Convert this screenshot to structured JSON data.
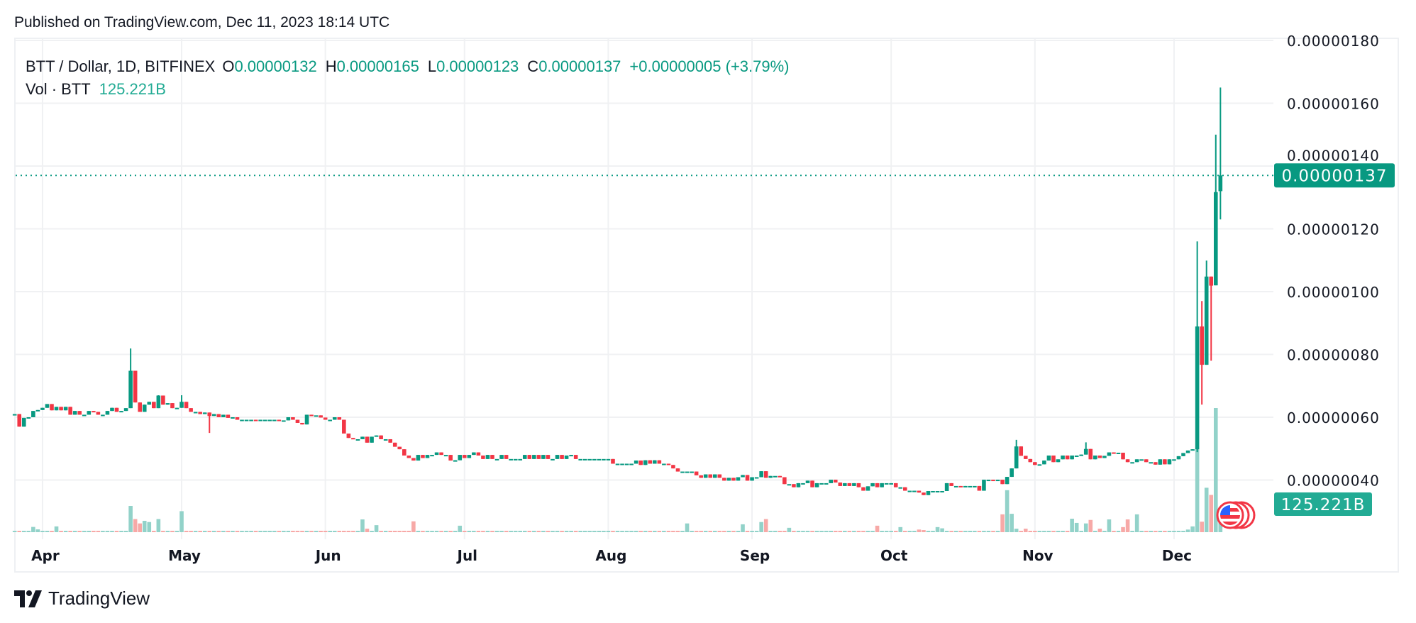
{
  "published": "Published on TradingView.com, Dec 11, 2023 18:14 UTC",
  "legend": {
    "symbol": "BTT / Dollar, 1D, BITFINEX",
    "o_label": "O",
    "o_value": "0.00000132",
    "h_label": "H",
    "h_value": "0.00000165",
    "l_label": "L",
    "l_value": "0.00000123",
    "c_label": "C",
    "c_value": "0.00000137",
    "change": "+0.00000005 (+3.79%)",
    "vol_label": "Vol · BTT",
    "vol_value": "125.221B"
  },
  "footer": {
    "brand": "TradingView"
  },
  "chart_data": {
    "type": "candlestick",
    "interval": "1D",
    "colors": {
      "up": "#089981",
      "down": "#f23645",
      "vol_up": "#92d2c9",
      "vol_down": "#f7a9a7",
      "volume_label_bg": "#22ab94",
      "price_label_bg": "#089981"
    },
    "price_axis": {
      "ticks": [
        "0.00000040",
        "0.00000060",
        "0.00000080",
        "0.00000100",
        "0.00000120",
        "0.00000140",
        "0.00000160",
        "0.00000180"
      ],
      "range": [
        2.8e-07,
        1.81e-06
      ]
    },
    "time_axis": {
      "ticks": [
        "Apr",
        "May",
        "Jun",
        "Jul",
        "Aug",
        "Sep",
        "Oct",
        "Nov",
        "Dec"
      ]
    },
    "last_price_label": "0.00000137",
    "last_volume_label": "125.221B",
    "grid": true,
    "closes": [
      6.1e-07,
      5.7e-07,
      5.98e-07,
      6e-07,
      6.2e-07,
      6.23e-07,
      6.3e-07,
      6.42e-07,
      6.22e-07,
      6.33e-07,
      6.22e-07,
      6.33e-07,
      6.08e-07,
      6.2e-07,
      6.08e-07,
      6.08e-07,
      6.2e-07,
      6.17e-07,
      6.08e-07,
      6.08e-07,
      6.2e-07,
      6.3e-07,
      6.17e-07,
      6.2e-07,
      6.29e-07,
      7.48e-07,
      6.47e-07,
      6.17e-07,
      6.4e-07,
      6.49e-07,
      6.29e-07,
      6.69e-07,
      6.4e-07,
      6.45e-07,
      6.29e-07,
      6.3e-07,
      6.49e-07,
      6.29e-07,
      6.17e-07,
      6.17e-07,
      6.1e-07,
      6.15e-07,
      6.04e-07,
      6.1e-07,
      6e-07,
      6.08e-07,
      5.98e-07,
      6e-07,
      5.92e-07,
      5.92e-07,
      5.92e-07,
      5.92e-07,
      5.9e-07,
      5.92e-07,
      5.92e-07,
      5.92e-07,
      5.92e-07,
      5.9e-07,
      5.9e-07,
      6e-07,
      5.92e-07,
      5.82e-07,
      5.77e-07,
      6.08e-07,
      6.06e-07,
      6.06e-07,
      5.99e-07,
      5.92e-07,
      5.92e-07,
      6e-07,
      5.92e-07,
      5.48e-07,
      5.34e-07,
      5.3e-07,
      5.3e-07,
      5.38e-07,
      5.19e-07,
      5.38e-07,
      5.42e-07,
      5.3e-07,
      5.3e-07,
      5.19e-07,
      5.06e-07,
      4.98e-07,
      4.78e-07,
      4.7e-07,
      4.62e-07,
      4.8e-07,
      4.7e-07,
      4.8e-07,
      4.8e-07,
      4.88e-07,
      4.8e-07,
      4.8e-07,
      4.62e-07,
      4.63e-07,
      4.8e-07,
      4.7e-07,
      4.8e-07,
      4.88e-07,
      4.78e-07,
      4.67e-07,
      4.8e-07,
      4.67e-07,
      4.67e-07,
      4.8e-07,
      4.67e-07,
      4.67e-07,
      4.67e-07,
      4.67e-07,
      4.8e-07,
      4.67e-07,
      4.8e-07,
      4.67e-07,
      4.8e-07,
      4.67e-07,
      4.67e-07,
      4.8e-07,
      4.67e-07,
      4.78e-07,
      4.8e-07,
      4.67e-07,
      4.67e-07,
      4.67e-07,
      4.67e-07,
      4.67e-07,
      4.67e-07,
      4.67e-07,
      4.67e-07,
      4.52e-07,
      4.52e-07,
      4.52e-07,
      4.52e-07,
      4.52e-07,
      4.62e-07,
      4.48e-07,
      4.63e-07,
      4.52e-07,
      4.63e-07,
      4.52e-07,
      4.52e-07,
      4.48e-07,
      4.37e-07,
      4.27e-07,
      4.27e-07,
      4.27e-07,
      4.27e-07,
      4.15e-07,
      4.07e-07,
      4.18e-07,
      4.07e-07,
      4.18e-07,
      4.07e-07,
      3.98e-07,
      4.07e-07,
      3.98e-07,
      4.09e-07,
      4.16e-07,
      3.98e-07,
      4.09e-07,
      4.09e-07,
      4.28e-07,
      4.07e-07,
      4.13e-07,
      4.13e-07,
      4.09e-07,
      3.87e-07,
      3.87e-07,
      3.77e-07,
      3.9e-07,
      3.9e-07,
      3.98e-07,
      3.77e-07,
      3.9e-07,
      3.9e-07,
      3.9e-07,
      4.01e-07,
      3.92e-07,
      3.81e-07,
      3.9e-07,
      3.81e-07,
      3.9e-07,
      3.77e-07,
      3.66e-07,
      3.8e-07,
      3.9e-07,
      3.77e-07,
      3.9e-07,
      3.9e-07,
      3.9e-07,
      3.77e-07,
      3.77e-07,
      3.66e-07,
      3.66e-07,
      3.66e-07,
      3.6e-07,
      3.52e-07,
      3.65e-07,
      3.65e-07,
      3.65e-07,
      3.65e-07,
      3.9e-07,
      3.81e-07,
      3.81e-07,
      3.78e-07,
      3.81e-07,
      3.81e-07,
      3.81e-07,
      3.66e-07,
      4.01e-07,
      4.01e-07,
      3.98e-07,
      4.01e-07,
      3.87e-07,
      4.1e-07,
      4.37e-07,
      5.07e-07,
      4.77e-07,
      4.67e-07,
      4.57e-07,
      4.48e-07,
      4.5e-07,
      4.62e-07,
      4.78e-07,
      4.57e-07,
      4.66e-07,
      4.78e-07,
      4.66e-07,
      4.78e-07,
      4.78e-07,
      4.81e-07,
      4.99e-07,
      4.66e-07,
      4.78e-07,
      4.7e-07,
      4.77e-07,
      4.88e-07,
      4.87e-07,
      4.87e-07,
      4.66e-07,
      4.57e-07,
      4.57e-07,
      4.66e-07,
      4.66e-07,
      4.57e-07,
      4.57e-07,
      4.49e-07,
      4.66e-07,
      4.5e-07,
      4.66e-07,
      4.66e-07,
      4.76e-07,
      4.86e-07,
      4.94e-07,
      4.98e-07
    ],
    "wick_extremes": [
      {
        "day": "Apr 20",
        "high": 8.19e-07
      },
      {
        "day": "Apr 21",
        "high": 7e-07
      },
      {
        "day": "Apr 26",
        "high": 6.7e-07
      },
      {
        "day": "May 1",
        "high": 6.7e-07
      },
      {
        "day": "May 7",
        "low": 5.5e-07
      },
      {
        "day": "Oct 28",
        "high": 5.28e-07
      },
      {
        "day": "Nov 12",
        "high": 5.2e-07
      }
    ],
    "recent_candles": [
      {
        "day": "Dec 6",
        "o": 4.98e-07,
        "h": 1.16e-06,
        "l": 4.89e-07,
        "c": 8.89e-07
      },
      {
        "day": "Dec 7",
        "o": 8.89e-07,
        "h": 9.7e-07,
        "l": 6.4e-07,
        "c": 7.67e-07
      },
      {
        "day": "Dec 8",
        "o": 7.67e-07,
        "h": 1.099e-06,
        "l": 7.67e-07,
        "c": 1.048e-06
      },
      {
        "day": "Dec 9",
        "o": 1.048e-06,
        "h": 1.048e-06,
        "l": 7.8e-07,
        "c": 1.019e-06
      },
      {
        "day": "Dec 10",
        "o": 1.02e-06,
        "h": 1.5e-06,
        "l": 1.02e-06,
        "c": 1.317e-06
      },
      {
        "day": "Dec 11",
        "o": 1.32e-06,
        "h": 1.65e-06,
        "l": 1.23e-06,
        "c": 1.37e-06
      }
    ],
    "volume_billions": [
      6,
      6,
      6,
      6,
      30,
      16,
      6,
      6,
      6,
      33,
      6,
      6,
      6,
      6,
      6,
      6,
      6,
      6,
      6,
      6,
      6,
      6,
      6,
      6,
      6,
      150,
      75,
      50,
      65,
      58,
      6,
      75,
      6,
      6,
      6,
      6,
      120,
      6,
      6,
      6,
      6,
      6,
      6,
      6,
      6,
      6,
      6,
      6,
      6,
      6,
      6,
      6,
      6,
      6,
      6,
      6,
      6,
      6,
      6,
      6,
      6,
      6,
      6,
      6,
      6,
      6,
      6,
      6,
      6,
      6,
      6,
      6,
      6,
      6,
      6,
      73,
      20,
      6,
      40,
      6,
      6,
      6,
      6,
      6,
      6,
      6,
      62,
      6,
      6,
      6,
      6,
      6,
      6,
      6,
      6,
      6,
      37,
      6,
      6,
      6,
      6,
      6,
      6,
      6,
      6,
      6,
      6,
      6,
      6,
      6,
      6,
      6,
      6,
      6,
      6,
      6,
      6,
      6,
      6,
      6,
      6,
      6,
      6,
      6,
      6,
      6,
      6,
      6,
      6,
      6,
      6,
      6,
      6,
      6,
      6,
      6,
      6,
      6,
      6,
      6,
      6,
      6,
      6,
      6,
      6,
      50,
      6,
      6,
      6,
      6,
      6,
      6,
      6,
      6,
      6,
      6,
      6,
      45,
      6,
      6,
      6,
      58,
      75,
      6,
      6,
      6,
      6,
      25,
      6,
      6,
      6,
      6,
      6,
      6,
      6,
      6,
      6,
      6,
      6,
      6,
      6,
      6,
      6,
      6,
      6,
      6,
      37,
      6,
      6,
      6,
      6,
      29,
      6,
      6,
      6,
      15,
      12,
      6,
      6,
      29,
      22,
      6,
      6,
      6,
      6,
      6,
      6,
      6,
      6,
      6,
      6,
      6,
      6,
      102,
      240,
      105,
      20,
      6,
      20,
      6,
      6,
      6,
      6,
      6,
      6,
      6,
      6,
      6,
      77,
      53,
      6,
      50,
      70,
      6,
      20,
      6,
      73,
      6,
      6,
      29,
      73,
      6,
      102,
      6,
      6,
      6,
      6,
      6,
      6,
      6,
      6,
      6,
      6,
      15,
      33,
      484,
      60,
      254,
      213,
      710,
      125.221
    ]
  }
}
